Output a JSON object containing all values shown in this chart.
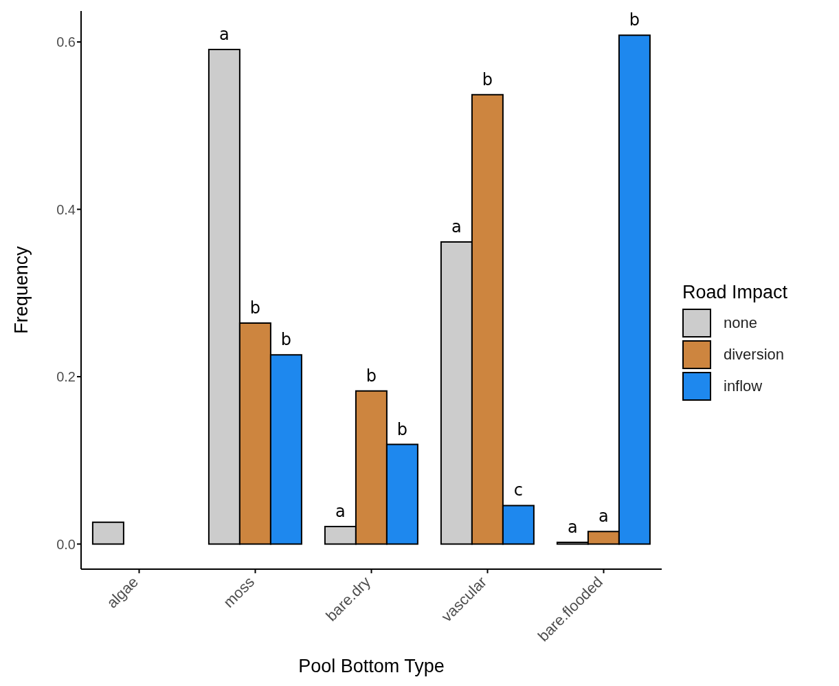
{
  "chart_data": {
    "type": "bar",
    "xlabel": "Pool Bottom Type",
    "ylabel": "Frequency",
    "legend_title": "Road Impact",
    "legend": "right",
    "categories": [
      "algae",
      "moss",
      "bare.dry",
      "vascular",
      "bare.flooded"
    ],
    "series": [
      {
        "name": "none",
        "color": "#cccccc",
        "values": [
          0.026,
          0.591,
          0.021,
          0.361,
          0.002
        ],
        "value_labels": [
          null,
          "a",
          "a",
          "a",
          "a"
        ]
      },
      {
        "name": "diversion",
        "color": "#cd853f",
        "values": [
          0,
          0.264,
          0.183,
          0.537,
          0.015
        ],
        "value_labels": [
          null,
          "b",
          "b",
          "b",
          "a"
        ]
      },
      {
        "name": "inflow",
        "color": "#1e88ee",
        "values": [
          0,
          0.226,
          0.119,
          0.046,
          0.608
        ],
        "value_labels": [
          null,
          "b",
          "b",
          "c",
          "b"
        ]
      }
    ],
    "ylim": [
      -0.03,
      0.637
    ],
    "yticks": [
      {
        "value": 0,
        "label": "0.0"
      },
      {
        "value": 0.2,
        "label": "0.2"
      },
      {
        "value": 0.4,
        "label": "0.4"
      },
      {
        "value": 0.6,
        "label": "0.6"
      }
    ],
    "grid": false
  }
}
